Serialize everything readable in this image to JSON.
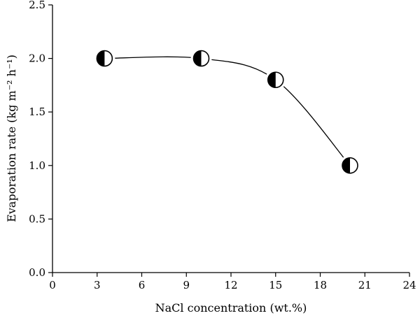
{
  "chart_data": {
    "type": "line",
    "title": "",
    "xlabel": "NaCl concentration (wt.%)",
    "ylabel": "Evaporation rate (kg m⁻² h⁻¹)",
    "xlim": [
      0,
      24
    ],
    "ylim": [
      0,
      2.5
    ],
    "x_ticks": [
      "0",
      "3",
      "6",
      "9",
      "12",
      "15",
      "18",
      "21",
      "24"
    ],
    "y_ticks": [
      "0.0",
      "0.5",
      "1.0",
      "1.5",
      "2.0",
      "2.5"
    ],
    "grid": false,
    "legend": "none",
    "marker": "half-filled circle (left half black)",
    "line_style": "smooth curve",
    "colors": {
      "line": "#000000",
      "marker_fill": "#000000",
      "marker_background": "#ffffff"
    },
    "series": [
      {
        "x": [
          3.5,
          10,
          15,
          20
        ],
        "y": [
          2.0,
          2.0,
          1.8,
          1.0
        ]
      }
    ]
  }
}
